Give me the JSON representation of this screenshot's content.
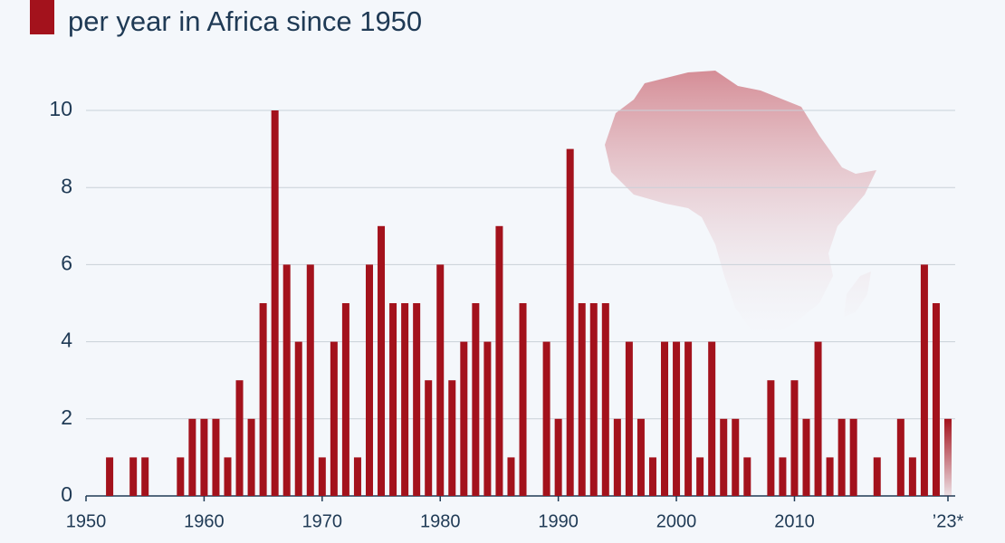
{
  "chart_data": {
    "type": "bar",
    "title": "per year in Africa since 1950",
    "x": [
      1952,
      1954,
      1955,
      1958,
      1959,
      1960,
      1961,
      1962,
      1963,
      1964,
      1965,
      1966,
      1967,
      1968,
      1969,
      1970,
      1971,
      1972,
      1973,
      1974,
      1975,
      1976,
      1977,
      1978,
      1979,
      1980,
      1981,
      1982,
      1983,
      1984,
      1985,
      1986,
      1987,
      1989,
      1990,
      1991,
      1992,
      1993,
      1994,
      1995,
      1996,
      1997,
      1998,
      1999,
      2000,
      2001,
      2002,
      2003,
      2004,
      2005,
      2006,
      2008,
      2009,
      2010,
      2011,
      2012,
      2013,
      2014,
      2015,
      2017,
      2019,
      2020,
      2021,
      2022,
      2023
    ],
    "values": [
      1,
      1,
      1,
      1,
      2,
      2,
      2,
      1,
      3,
      2,
      5,
      10,
      6,
      4,
      6,
      1,
      4,
      5,
      1,
      6,
      7,
      5,
      5,
      5,
      3,
      6,
      3,
      4,
      5,
      4,
      7,
      1,
      5,
      4,
      2,
      9,
      5,
      5,
      5,
      2,
      4,
      2,
      1,
      4,
      4,
      4,
      1,
      4,
      2,
      2,
      1,
      3,
      1,
      3,
      2,
      4,
      1,
      2,
      2,
      1,
      2,
      1,
      6,
      5,
      2
    ],
    "color": "#a3121c",
    "xlim": [
      1950,
      2023
    ],
    "xticks": [
      1950,
      1960,
      1970,
      1980,
      1990,
      2000,
      2010,
      {
        "value": 2023,
        "label": "’23*"
      }
    ],
    "ylim": [
      0,
      10
    ],
    "yticks": [
      0,
      2,
      4,
      6,
      8,
      10
    ],
    "grid": true
  }
}
